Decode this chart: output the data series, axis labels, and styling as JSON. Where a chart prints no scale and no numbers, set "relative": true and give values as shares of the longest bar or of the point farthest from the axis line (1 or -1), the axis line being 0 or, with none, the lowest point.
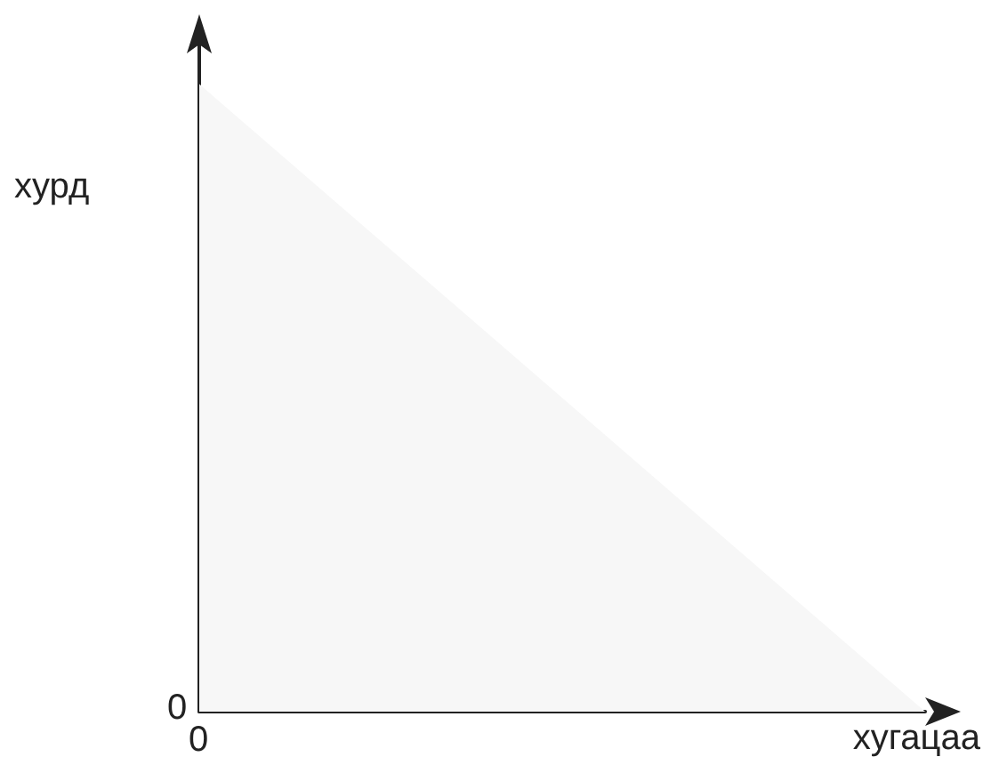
{
  "chart_data": {
    "type": "area",
    "relative": true,
    "xlabel": "хугацаа",
    "ylabel": "хурд",
    "categories": [
      null,
      null
    ],
    "series": [
      {
        "color": "#f7f7f7",
        "values": [
          1,
          0
        ]
      }
    ],
    "annotations": [
      "0",
      "0"
    ],
    "grid": false
  }
}
